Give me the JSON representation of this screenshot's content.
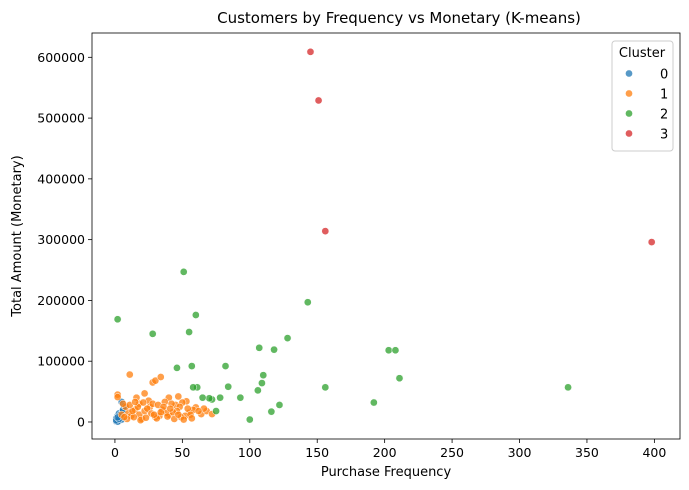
{
  "chart_data": {
    "type": "scatter",
    "title": "Customers by Frequency vs Monetary (K-means)",
    "xlabel": "Purchase Frequency",
    "ylabel": "Total Amount (Monetary)",
    "xlim": [
      -17,
      419
    ],
    "ylim": [
      -28000,
      640000
    ],
    "xticks": [
      0,
      50,
      100,
      150,
      200,
      250,
      300,
      350,
      400
    ],
    "yticks": [
      0,
      100000,
      200000,
      300000,
      400000,
      500000,
      600000
    ],
    "grid": false,
    "legend": {
      "title": "Cluster",
      "placement": "top-right"
    },
    "series": [
      {
        "name": "0",
        "color": "#1f77b4",
        "points": [
          [
            1,
            1000
          ],
          [
            2,
            3000
          ],
          [
            1,
            6000
          ],
          [
            2,
            10000
          ],
          [
            3,
            2000
          ],
          [
            3,
            14000
          ],
          [
            4,
            8000
          ],
          [
            5,
            4000
          ],
          [
            6,
            18000
          ],
          [
            5,
            33000
          ],
          [
            2,
            500
          ],
          [
            1,
            2500
          ],
          [
            4,
            12000
          ],
          [
            6,
            20000
          ],
          [
            7,
            26000
          ],
          [
            3,
            5000
          ],
          [
            2,
            7500
          ]
        ]
      },
      {
        "name": "1",
        "color": "#ff7f0e",
        "points": [
          [
            2,
            45000
          ],
          [
            2,
            41000
          ],
          [
            11,
            78000
          ],
          [
            28,
            65000
          ],
          [
            30,
            68000
          ],
          [
            34,
            74000
          ],
          [
            22,
            47000
          ],
          [
            47,
            42000
          ],
          [
            40,
            40000
          ],
          [
            53,
            34000
          ],
          [
            60,
            24000
          ],
          [
            64,
            13000
          ],
          [
            68,
            18000
          ],
          [
            72,
            13000
          ],
          [
            66,
            22000
          ],
          [
            37,
            33000
          ],
          [
            18,
            30000
          ],
          [
            25,
            35000
          ],
          [
            45,
            28000
          ],
          [
            50,
            32000
          ],
          [
            15,
            20000
          ],
          [
            10,
            15000
          ],
          [
            12,
            10000
          ],
          [
            20,
            5000
          ],
          [
            30,
            8000
          ],
          [
            40,
            12000
          ],
          [
            35,
            20000
          ],
          [
            55,
            15000
          ],
          [
            48,
            25000
          ],
          [
            42,
            30000
          ],
          [
            8,
            25000
          ],
          [
            6,
            30000
          ],
          [
            16,
            40000
          ],
          [
            26,
            25000
          ],
          [
            33,
            10000
          ],
          [
            44,
            5000
          ],
          [
            52,
            10000
          ],
          [
            58,
            20000
          ],
          [
            38,
            15000
          ],
          [
            28,
            30000
          ],
          [
            18,
            12000
          ],
          [
            22,
            18000
          ],
          [
            14,
            8000
          ],
          [
            24,
            22000
          ],
          [
            32,
            28000
          ],
          [
            36,
            25000
          ],
          [
            46,
            18000
          ],
          [
            54,
            22000
          ],
          [
            9,
            5000
          ],
          [
            13,
            18000
          ],
          [
            17,
            25000
          ],
          [
            21,
            32000
          ],
          [
            27,
            14000
          ],
          [
            31,
            6000
          ],
          [
            39,
            9000
          ],
          [
            43,
            16000
          ],
          [
            49,
            8000
          ],
          [
            56,
            12000
          ],
          [
            62,
            18000
          ],
          [
            5,
            12000
          ],
          [
            7,
            8000
          ],
          [
            19,
            3000
          ],
          [
            23,
            7000
          ],
          [
            29,
            12000
          ],
          [
            34,
            16000
          ],
          [
            41,
            22000
          ],
          [
            47,
            12000
          ],
          [
            51,
            4000
          ],
          [
            57,
            6000
          ],
          [
            11,
            28000
          ],
          [
            15,
            33000
          ]
        ]
      },
      {
        "name": "2",
        "color": "#2ca02c",
        "points": [
          [
            51,
            247000
          ],
          [
            2,
            169000
          ],
          [
            60,
            176000
          ],
          [
            28,
            145000
          ],
          [
            55,
            148000
          ],
          [
            143,
            197000
          ],
          [
            128,
            138000
          ],
          [
            107,
            122000
          ],
          [
            110,
            77000
          ],
          [
            118,
            119000
          ],
          [
            203,
            118000
          ],
          [
            208,
            118000
          ],
          [
            211,
            72000
          ],
          [
            336,
            57000
          ],
          [
            192,
            32000
          ],
          [
            156,
            57000
          ],
          [
            46,
            89000
          ],
          [
            57,
            92000
          ],
          [
            82,
            92000
          ],
          [
            93,
            40000
          ],
          [
            100,
            4000
          ],
          [
            116,
            17000
          ],
          [
            122,
            28000
          ],
          [
            106,
            52000
          ],
          [
            109,
            64000
          ],
          [
            84,
            58000
          ],
          [
            78,
            40000
          ],
          [
            75,
            18000
          ],
          [
            72,
            37000
          ],
          [
            70,
            39000
          ],
          [
            61,
            57000
          ],
          [
            58,
            57000
          ],
          [
            65,
            40000
          ]
        ]
      },
      {
        "name": "3",
        "color": "#d62728",
        "points": [
          [
            145,
            609000
          ],
          [
            151,
            529000
          ],
          [
            156,
            314000
          ],
          [
            398,
            296000
          ]
        ]
      }
    ]
  }
}
